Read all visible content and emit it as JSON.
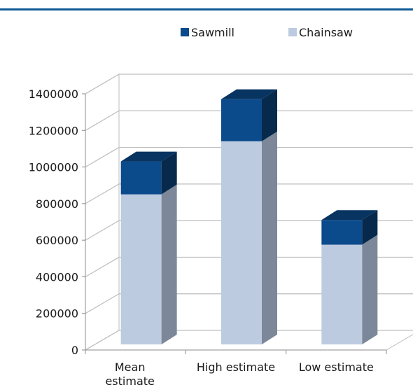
{
  "chart_data": {
    "type": "bar",
    "stacked": true,
    "three_d": true,
    "categories": [
      "Mean estimate",
      "High estimate",
      "Low estimate"
    ],
    "series": [
      {
        "name": "Chainsaw",
        "values": [
          820000,
          1110000,
          545000
        ],
        "color": "#bccbe0"
      },
      {
        "name": "Sawmill",
        "values": [
          180000,
          230000,
          135000
        ],
        "color": "#0b4a8b"
      }
    ],
    "legend_order": [
      "Sawmill",
      "Chainsaw"
    ],
    "legend_position": "top",
    "yticks": [
      "0",
      "200000",
      "400000",
      "600000",
      "800000",
      "1000000",
      "1200000",
      "1400000"
    ],
    "ylim": [
      0,
      1400000
    ],
    "grid": true,
    "xlabel": "",
    "ylabel": "",
    "title": "",
    "colors": {
      "accent_rule": "#0f5a96",
      "grid": "#bdbdbd"
    }
  }
}
